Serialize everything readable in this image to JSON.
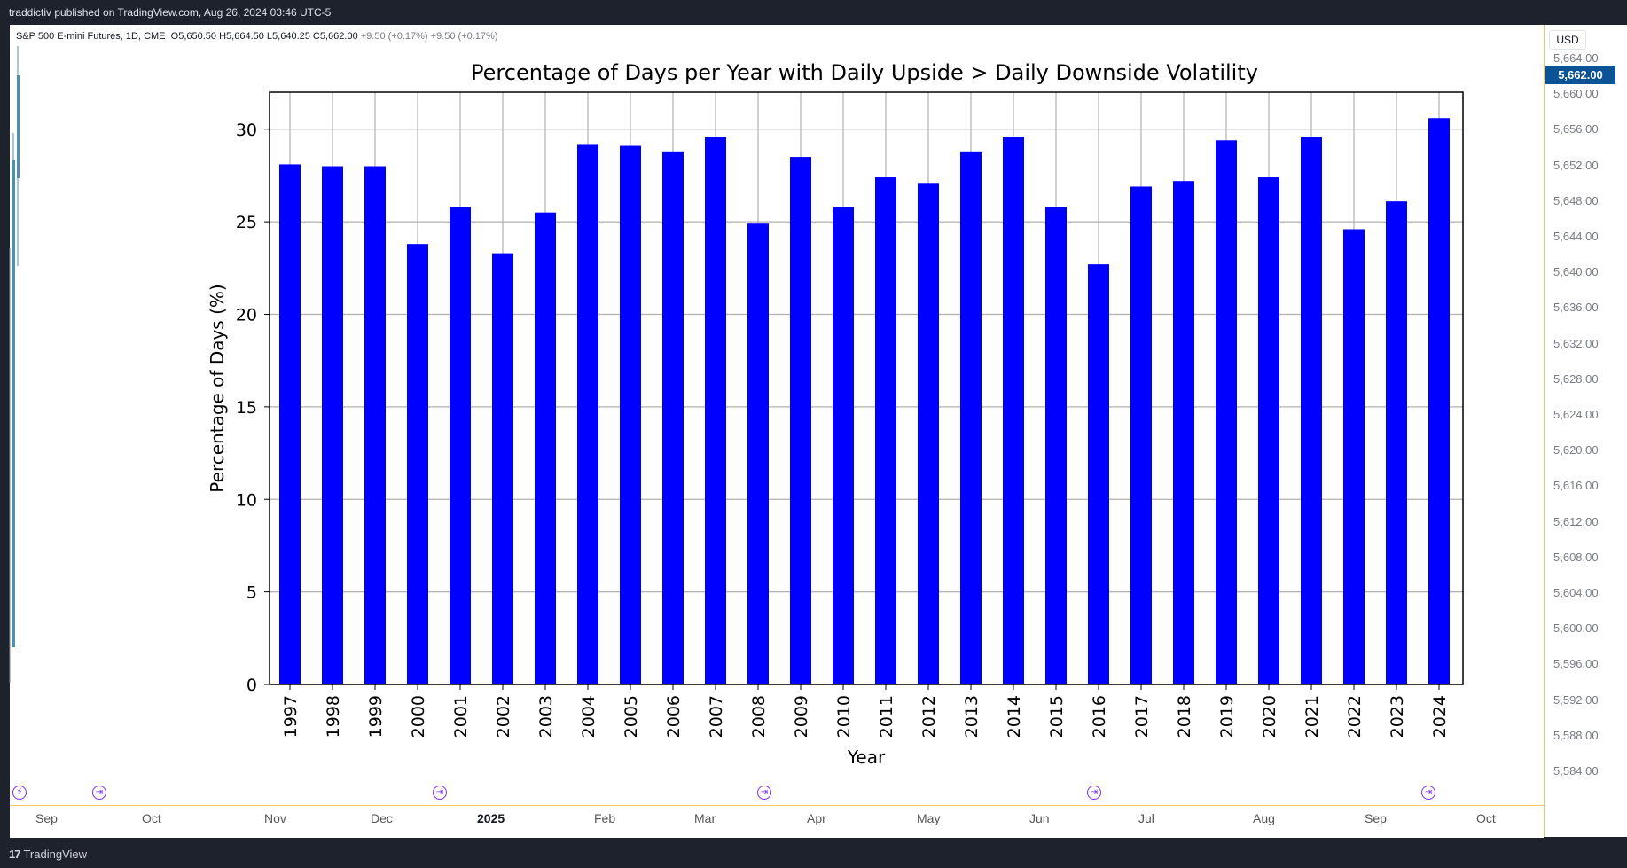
{
  "header": {
    "publisher": "traddictiv published on TradingView.com, Aug 26, 2024 03:46 UTC-5"
  },
  "legend": {
    "symbol": "S&P 500 E-mini Futures, 1D, CME",
    "open": "O5,650.50",
    "high": "H5,664.50",
    "low": "L5,640.25",
    "close": "C5,662.00",
    "change": "+9.50 (+0.17%)",
    "change2": "+9.50 (+0.17%)"
  },
  "price_axis": {
    "currency": "USD",
    "current": "5,662.00",
    "ticks": [
      "5,664.00",
      "5,660.00",
      "5,656.00",
      "5,652.00",
      "5,648.00",
      "5,644.00",
      "5,640.00",
      "5,636.00",
      "5,632.00",
      "5,628.00",
      "5,624.00",
      "5,620.00",
      "5,616.00",
      "5,612.00",
      "5,608.00",
      "5,604.00",
      "5,600.00",
      "5,596.00",
      "5,592.00",
      "5,588.00",
      "5,584.00"
    ]
  },
  "time_axis": {
    "labels": [
      "Sep",
      "Oct",
      "Nov",
      "Dec",
      "2025",
      "Feb",
      "Mar",
      "Apr",
      "May",
      "Jun",
      "Jul",
      "Aug",
      "Sep",
      "Oct"
    ]
  },
  "footer": {
    "brand": "TradingView",
    "logo_text": "17"
  },
  "colors": {
    "bar": "#0000ff",
    "accent": "#0b5394",
    "event": "#7b2ff7"
  },
  "chart_data": {
    "type": "bar",
    "title": "Percentage of Days per Year with Daily Upside > Daily Downside Volatility",
    "xlabel": "Year",
    "ylabel": "Percentage of Days (%)",
    "ylim": [
      0,
      32
    ],
    "yticks": [
      0,
      5,
      10,
      15,
      20,
      25,
      30
    ],
    "grid": true,
    "categories": [
      "1997",
      "1998",
      "1999",
      "2000",
      "2001",
      "2002",
      "2003",
      "2004",
      "2005",
      "2006",
      "2007",
      "2008",
      "2009",
      "2010",
      "2011",
      "2012",
      "2013",
      "2014",
      "2015",
      "2016",
      "2017",
      "2018",
      "2019",
      "2020",
      "2021",
      "2022",
      "2023",
      "2024"
    ],
    "values": [
      28.1,
      28.0,
      28.0,
      23.8,
      25.8,
      23.3,
      25.5,
      29.2,
      29.1,
      28.8,
      29.6,
      24.9,
      28.5,
      25.8,
      27.4,
      27.1,
      28.8,
      29.6,
      25.8,
      22.7,
      26.9,
      27.2,
      29.4,
      27.4,
      29.6,
      24.6,
      26.1,
      30.6
    ]
  }
}
